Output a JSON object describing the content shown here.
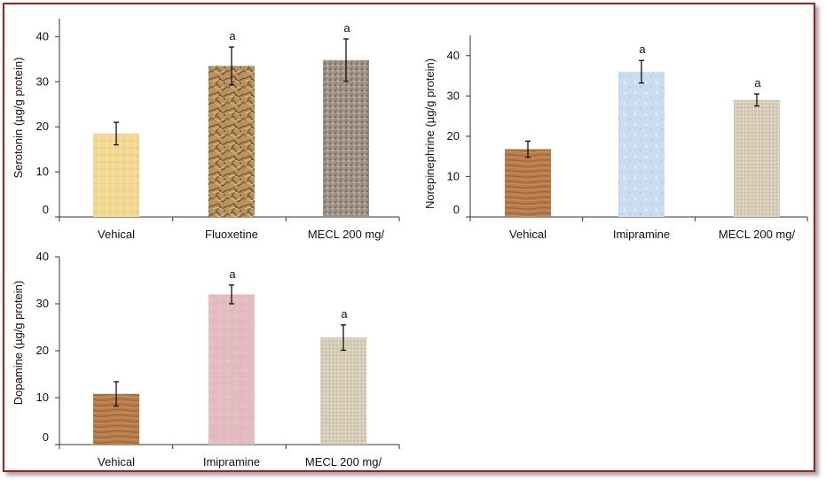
{
  "chart_data": [
    {
      "type": "bar",
      "ylabel": "Serotonin (µg/g protein)",
      "categories": [
        "Vehical",
        "Fluoxetine",
        "MECL 200 mg/"
      ],
      "values": [
        18.5,
        33.5,
        34.8
      ],
      "errors": [
        2.5,
        4.2,
        4.7
      ],
      "annotations": [
        "",
        "a",
        "a"
      ],
      "yticks": [
        "0",
        "10",
        "20",
        "30",
        "40"
      ],
      "ylim": [
        0,
        44
      ],
      "colors": [
        "#f2d592",
        "#b8935c",
        "#9e8f84"
      ],
      "textures": [
        "papyrus",
        "crumpled-paper",
        "granite"
      ]
    },
    {
      "type": "bar",
      "ylabel": "Norepinephrine (µg/g protein)",
      "categories": [
        "Vehical",
        "Imipramine",
        "MECL 200 mg/"
      ],
      "values": [
        16.8,
        36,
        29
      ],
      "errors": [
        2,
        2.8,
        1.5
      ],
      "annotations": [
        "",
        "a",
        "a"
      ],
      "yticks": [
        "0",
        "10",
        "20",
        "30",
        "40"
      ],
      "ylim": [
        0,
        45
      ],
      "colors": [
        "#b87c4a",
        "#c9dcf0",
        "#d6cbb8"
      ],
      "textures": [
        "wood",
        "water-droplets",
        "canvas"
      ]
    },
    {
      "type": "bar",
      "ylabel": "Dopamine (µg/g protein)",
      "categories": [
        "Vehical",
        "Imipramine",
        "MECL 200 mg/"
      ],
      "values": [
        10.8,
        32,
        22.8
      ],
      "errors": [
        2.6,
        2,
        2.7
      ],
      "annotations": [
        "",
        "a",
        "a"
      ],
      "yticks": [
        "0",
        "10",
        "20",
        "30",
        "40"
      ],
      "ylim": [
        0,
        40
      ],
      "colors": [
        "#b87c4a",
        "#e2bcc0",
        "#d6cbb8"
      ],
      "textures": [
        "wood",
        "pink-tissue",
        "canvas"
      ]
    }
  ]
}
